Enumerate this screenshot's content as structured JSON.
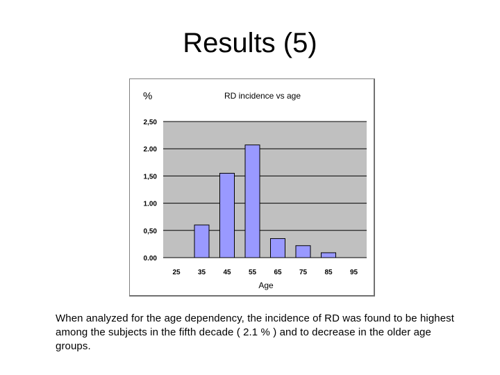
{
  "slide": {
    "title": "Results (5)",
    "caption": "When analyzed for the age dependency, the incidence of RD was found to be highest among the subjects in the fifth decade ( 2.1 % ) and to decrease in the older age groups."
  },
  "chart_data": {
    "type": "bar",
    "title": "RD incidence vs age",
    "ylabel": "%",
    "xlabel": "Age",
    "categories": [
      "25",
      "35",
      "45",
      "55",
      "65",
      "75",
      "85",
      "95"
    ],
    "values": [
      0,
      0.6,
      1.55,
      2.07,
      0.35,
      0.22,
      0.09,
      0
    ],
    "ylim": [
      0,
      2.5
    ],
    "yticks": [
      0,
      0.5,
      1,
      1.5,
      2,
      2.5
    ],
    "ytick_labels": [
      "0.00",
      "0,50",
      "1.00",
      "1,50",
      "2.00",
      "2,50"
    ],
    "grid": true,
    "legend": "none",
    "colors": {
      "plot_background": "#c0c0c0",
      "bar_fill": "#9999ff",
      "bar_stroke": "#000000",
      "gridline": "#000000"
    }
  }
}
